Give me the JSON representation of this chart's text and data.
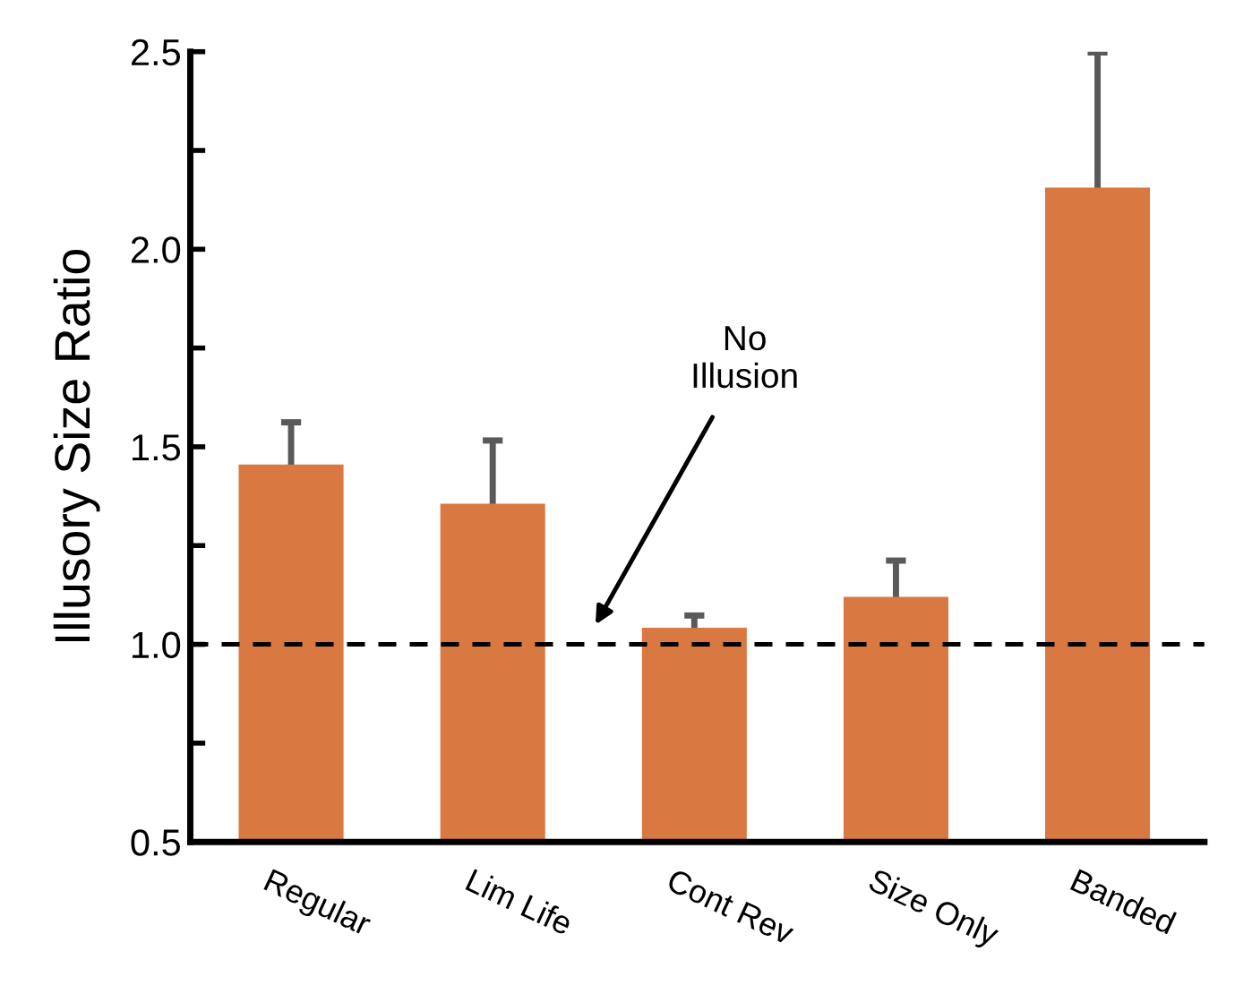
{
  "chart_data": {
    "type": "bar",
    "ylabel": "Illusory Size Ratio",
    "categories": [
      "Regular",
      "Lim Life",
      "Cont Rev",
      "Size Only",
      "Banded"
    ],
    "values": [
      1.455,
      1.356,
      1.042,
      1.12,
      2.156
    ],
    "errors": [
      0.107,
      0.16,
      0.031,
      0.092,
      0.342
    ],
    "color": "#d97841",
    "ylim": [
      0.5,
      2.5
    ],
    "yticks": [
      0.5,
      {
        "value": 0.75,
        "label": null
      },
      {
        "value": 1,
        "label": "1.0"
      },
      {
        "value": 1.25,
        "label": null
      },
      1.5,
      {
        "value": 1.75,
        "label": null
      },
      {
        "value": 2,
        "label": "2.0"
      },
      {
        "value": 2.25,
        "label": null
      },
      2.5
    ],
    "ref_lines": [
      {
        "axis": "y",
        "value": 1.0,
        "label": "No\nIllusion",
        "line_style": "dashed",
        "color": "#000000"
      }
    ],
    "grid": false,
    "legend": false
  }
}
